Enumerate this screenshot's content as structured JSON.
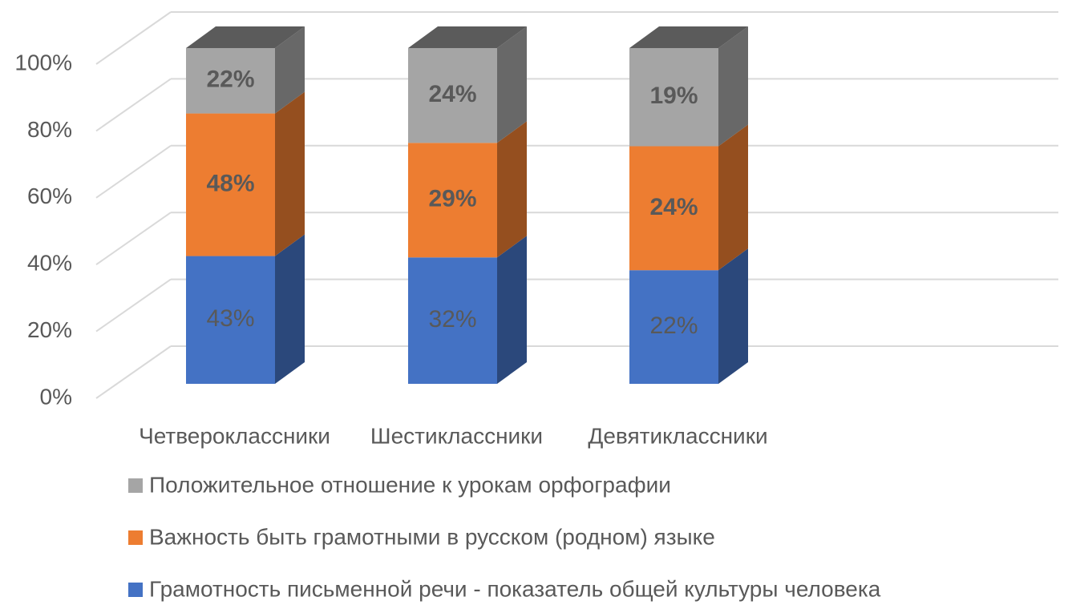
{
  "chart_data": {
    "type": "bar3d",
    "stacked_percent": true,
    "categories": [
      "Четвероклассники",
      "Шестиклассники",
      "Девятиклассники"
    ],
    "series": [
      {
        "name": "Грамотность письменной речи - показатель общей культуры человека",
        "color": "#4472c4",
        "values": [
          43,
          32,
          22
        ],
        "value_labels": [
          "43%",
          "32%",
          "22%"
        ]
      },
      {
        "name": "Важность быть грамотными в русском (родном) языке",
        "color": "#ed7d31",
        "values": [
          48,
          29,
          24
        ],
        "value_labels": [
          "48%",
          "29%",
          "24%"
        ]
      },
      {
        "name": "Положительное отношение к урокам орфографии",
        "color": "#a5a5a5",
        "values": [
          22,
          24,
          19
        ],
        "value_labels": [
          "22%",
          "24%",
          "19%"
        ]
      }
    ],
    "ylim": [
      0,
      100
    ],
    "yticks": [
      {
        "value": 0,
        "label": "0%"
      },
      {
        "value": 20,
        "label": "20%"
      },
      {
        "value": 40,
        "label": "40%"
      },
      {
        "value": 60,
        "label": "60%"
      },
      {
        "value": 80,
        "label": "80%"
      },
      {
        "value": 100,
        "label": "100%"
      }
    ],
    "grid": true,
    "legend": "bottom"
  }
}
